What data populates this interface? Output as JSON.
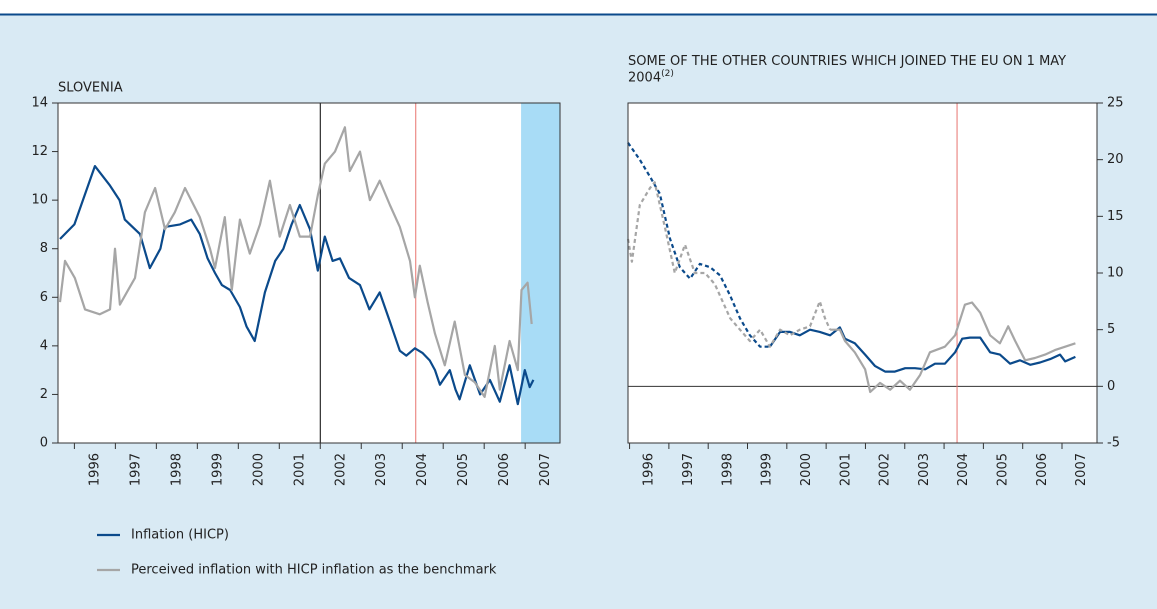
{
  "chart_data": [
    {
      "type": "line",
      "title": "SLOVENIA",
      "xlim": [
        1995.6,
        2007.85
      ],
      "xticks": [
        1996,
        1997,
        1998,
        1999,
        2000,
        2001,
        2002,
        2003,
        2004,
        2005,
        2006,
        2007
      ],
      "ylim": [
        0,
        14
      ],
      "yticks": [
        0,
        2,
        4,
        6,
        8,
        10,
        12,
        14
      ],
      "yaxis_side": "left",
      "shade": {
        "xlim": [
          2006.9,
          2007.85
        ],
        "color": "#a8dcf6"
      },
      "vlines": [
        {
          "x": 2002.0,
          "color": "#000000"
        },
        {
          "x": 2004.33,
          "color": "#e8736f"
        }
      ],
      "series": [
        {
          "name": "Inflation (HICP)",
          "color": "#0b4a8b",
          "x": [
            1995.65,
            1996.0,
            1996.5,
            1996.87,
            1997.1,
            1997.23,
            1997.6,
            1997.84,
            1998.1,
            1998.21,
            1998.58,
            1998.85,
            1999.06,
            1999.25,
            1999.43,
            1999.6,
            1999.8,
            2000.04,
            2000.2,
            2000.4,
            2000.65,
            2000.9,
            2001.1,
            2001.3,
            2001.5,
            2001.75,
            2001.94,
            2002.11,
            2002.3,
            2002.48,
            2002.7,
            2002.97,
            2003.2,
            2003.45,
            2003.7,
            2003.94,
            2004.1,
            2004.31,
            2004.5,
            2004.67,
            2004.8,
            2004.92,
            2005.16,
            2005.3,
            2005.4,
            2005.65,
            2005.9,
            2006.14,
            2006.38,
            2006.62,
            2006.82,
            2006.99,
            2007.11,
            2007.2
          ],
          "values": [
            8.4,
            9.0,
            11.4,
            10.6,
            10.0,
            9.2,
            8.6,
            7.2,
            8.0,
            8.9,
            9.0,
            9.2,
            8.6,
            7.6,
            7.0,
            6.5,
            6.3,
            5.6,
            4.8,
            4.2,
            6.2,
            7.5,
            8.0,
            9.0,
            9.8,
            8.8,
            7.1,
            8.5,
            7.5,
            7.6,
            6.8,
            6.5,
            5.5,
            6.2,
            5.0,
            3.8,
            3.6,
            3.9,
            3.7,
            3.4,
            3.0,
            2.4,
            3.0,
            2.2,
            1.8,
            3.2,
            2.0,
            2.6,
            1.7,
            3.2,
            1.6,
            3.0,
            2.3,
            2.6
          ]
        },
        {
          "name": "Perceived inflation with HICP inflation as the benchmark",
          "color": "#a6a6a6",
          "x": [
            1995.65,
            1995.77,
            1996.01,
            1996.26,
            1996.62,
            1996.87,
            1996.99,
            1997.11,
            1997.48,
            1997.72,
            1997.97,
            1998.21,
            1998.45,
            1998.7,
            1999.06,
            1999.31,
            1999.43,
            1999.67,
            1999.84,
            2000.04,
            2000.28,
            2000.53,
            2000.77,
            2001.01,
            2001.26,
            2001.5,
            2001.75,
            2001.94,
            2002.11,
            2002.36,
            2002.6,
            2002.72,
            2002.97,
            2003.21,
            2003.45,
            2003.7,
            2003.94,
            2004.19,
            2004.31,
            2004.43,
            2004.62,
            2004.8,
            2005.04,
            2005.28,
            2005.53,
            2005.77,
            2006.01,
            2006.26,
            2006.38,
            2006.62,
            2006.82,
            2006.91,
            2007.06,
            2007.16
          ],
          "values": [
            5.8,
            7.5,
            6.8,
            5.5,
            5.3,
            5.5,
            8.0,
            5.7,
            6.8,
            9.5,
            10.5,
            8.8,
            9.5,
            10.5,
            9.3,
            8.0,
            7.2,
            9.3,
            6.3,
            9.2,
            7.8,
            9.0,
            10.8,
            8.5,
            9.8,
            8.5,
            8.5,
            10.2,
            11.5,
            12.0,
            13.0,
            11.2,
            12.0,
            10.0,
            10.8,
            9.8,
            8.9,
            7.5,
            6.0,
            7.3,
            5.8,
            4.5,
            3.2,
            5.0,
            2.8,
            2.5,
            1.9,
            4.0,
            2.2,
            4.2,
            3.0,
            6.3,
            6.6,
            4.9
          ]
        }
      ]
    },
    {
      "type": "line",
      "title": "SOME OF THE OTHER COUNTRIES WHICH JOINED THE EU ON 1 MAY 2004",
      "title_note": "(2)",
      "xlim": [
        1995.96,
        2007.89
      ],
      "xticks": [
        1996,
        1997,
        1998,
        1999,
        2000,
        2001,
        2002,
        2003,
        2004,
        2005,
        2006,
        2007
      ],
      "ylim": [
        -5,
        25
      ],
      "yticks": [
        -5,
        0,
        5,
        10,
        15,
        20,
        25
      ],
      "yaxis_side": "right",
      "vlines": [
        {
          "x": 2004.33,
          "color": "#e8736f"
        }
      ],
      "hlines": [
        0
      ],
      "series": [
        {
          "color": "#0b4a8b",
          "dash_until": 1999.57,
          "x": [
            1995.96,
            1996.26,
            1996.52,
            1996.77,
            1997.03,
            1997.28,
            1997.54,
            1997.79,
            1998.05,
            1998.3,
            1998.56,
            1998.81,
            1999.06,
            1999.32,
            1999.57,
            1999.83,
            2000.08,
            2000.33,
            2000.59,
            2000.84,
            2001.1,
            2001.35,
            2001.48,
            2001.73,
            2001.99,
            2002.24,
            2002.5,
            2002.75,
            2003.01,
            2003.26,
            2003.52,
            2003.77,
            2004.02,
            2004.28,
            2004.46,
            2004.66,
            2004.92,
            2005.17,
            2005.42,
            2005.68,
            2005.93,
            2006.19,
            2006.44,
            2006.7,
            2006.95,
            2007.08,
            2007.34
          ],
          "values": [
            21.5,
            20,
            18.5,
            17,
            13,
            10.5,
            9.5,
            10.8,
            10.5,
            9.8,
            8,
            6,
            4.5,
            3.5,
            3.5,
            4.8,
            4.8,
            4.5,
            5,
            4.8,
            4.5,
            5.2,
            4.2,
            3.8,
            2.8,
            1.8,
            1.3,
            1.3,
            1.6,
            1.6,
            1.5,
            2.0,
            2.0,
            3.0,
            4.2,
            4.3,
            4.3,
            3.0,
            2.8,
            2.0,
            2.3,
            1.9,
            2.1,
            2.4,
            2.8,
            2.2,
            2.6
          ]
        },
        {
          "color": "#a6a6a6",
          "dash_until": 2001.1,
          "x": [
            1995.96,
            1996.06,
            1996.26,
            1996.52,
            1996.64,
            1996.9,
            1997.15,
            1997.41,
            1997.66,
            1997.92,
            1998.17,
            1998.56,
            1998.81,
            1999.06,
            1999.32,
            1999.57,
            1999.83,
            2000.08,
            2000.33,
            2000.59,
            2000.84,
            2000.97,
            2001.1,
            2001.35,
            2001.48,
            2001.73,
            2001.99,
            2002.12,
            2002.37,
            2002.63,
            2002.88,
            2003.13,
            2003.39,
            2003.64,
            2004.02,
            2004.28,
            2004.53,
            2004.71,
            2004.92,
            2005.17,
            2005.42,
            2005.63,
            2005.81,
            2006.06,
            2006.31,
            2006.57,
            2006.82,
            2007.08,
            2007.34
          ],
          "values": [
            13,
            11,
            16,
            17.5,
            18,
            14,
            10,
            12.5,
            10,
            10,
            9,
            6,
            5,
            4,
            5,
            3.5,
            5,
            4.5,
            5,
            5.3,
            7.5,
            6,
            5,
            5,
            4,
            3,
            1.5,
            -0.5,
            0.3,
            -0.3,
            0.5,
            -0.3,
            1.0,
            3.0,
            3.5,
            4.5,
            7.2,
            7.4,
            6.5,
            4.5,
            3.8,
            5.3,
            4.0,
            2.3,
            2.5,
            2.8,
            3.2,
            3.5,
            3.8
          ]
        }
      ]
    }
  ]
}
